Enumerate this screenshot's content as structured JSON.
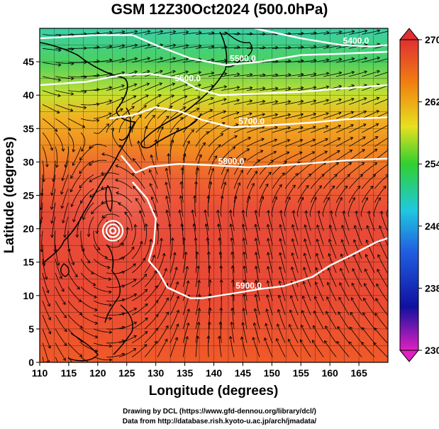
{
  "title": "GSM 12Z30Oct2024 (500.0hPa)",
  "credits": {
    "line1": "Drawing by DCL (https://www.gfd-dennou.org/library/dcl/)",
    "line2": "Data from http://database.rish.kyoto-u.ac.jp/arch/jmadata/"
  },
  "chart_data": {
    "type": "heatmap",
    "title": "GSM 12Z30Oct2024 (500.0hPa)",
    "xlabel": "Longitude (degrees)",
    "ylabel": "Latitude  (degrees)",
    "xlim": [
      110,
      170
    ],
    "ylim": [
      0,
      50
    ],
    "x_ticks": [
      110,
      115,
      120,
      125,
      130,
      135,
      140,
      145,
      150,
      155,
      160,
      165
    ],
    "y_ticks": [
      0,
      5,
      10,
      15,
      20,
      25,
      30,
      35,
      40,
      45
    ],
    "colorbar": {
      "min": 230,
      "max": 270,
      "ticks": [
        230,
        238,
        246,
        254,
        262,
        270
      ],
      "colors": [
        "#e020c0",
        "#1010a0",
        "#2060e0",
        "#20c8e0",
        "#30d030",
        "#e8e020",
        "#f08010",
        "#e03030"
      ]
    },
    "field": "temperature shading (K) with wind streamlines and geopotential height contours",
    "contours": [
      {
        "label": "5400.0",
        "points": [
          [
            147,
            50
          ],
          [
            155,
            48.5
          ],
          [
            162,
            47.5
          ],
          [
            167,
            47.3
          ],
          [
            170,
            47.5
          ]
        ]
      },
      {
        "label": "5500.0",
        "points": [
          [
            110,
            48.5
          ],
          [
            120,
            49
          ],
          [
            126,
            49
          ],
          [
            130,
            47.5
          ],
          [
            136,
            45.5
          ],
          [
            142,
            44.5
          ],
          [
            148,
            45
          ],
          [
            155,
            46
          ],
          [
            162,
            46.2
          ],
          [
            170,
            46.5
          ]
        ]
      },
      {
        "label": "5600.0",
        "points": [
          [
            110,
            41.5
          ],
          [
            118,
            42
          ],
          [
            124,
            43
          ],
          [
            129,
            43.2
          ],
          [
            134,
            42.5
          ],
          [
            137,
            41
          ],
          [
            141,
            40
          ],
          [
            147,
            40.2
          ],
          [
            155,
            40.5
          ],
          [
            162,
            41
          ],
          [
            170,
            41.5
          ]
        ]
      },
      {
        "label": "5700.0",
        "points": [
          [
            122,
            36.5
          ],
          [
            126,
            37
          ],
          [
            130,
            38.2
          ],
          [
            134,
            37.6
          ],
          [
            138,
            36.3
          ],
          [
            143,
            35.2
          ],
          [
            150,
            35.5
          ],
          [
            157,
            35.9
          ],
          [
            163,
            36.4
          ],
          [
            170,
            36.7
          ]
        ]
      },
      {
        "label": "5800.0",
        "points": [
          [
            124,
            31
          ],
          [
            126.5,
            28.4
          ],
          [
            129,
            29.3
          ],
          [
            134,
            29.7
          ],
          [
            140,
            29.5
          ],
          [
            146,
            29.2
          ],
          [
            152,
            29.5
          ],
          [
            158,
            29.9
          ],
          [
            164,
            30.3
          ],
          [
            170,
            30.5
          ]
        ]
      },
      {
        "label": "5900.0",
        "points": [
          [
            126,
            27
          ],
          [
            128.5,
            24.5
          ],
          [
            130,
            21.5
          ],
          [
            129.7,
            18
          ],
          [
            128.8,
            15.2
          ],
          [
            130.5,
            13.5
          ],
          [
            132,
            11.2
          ],
          [
            136,
            9.6
          ],
          [
            138,
            9.6
          ],
          [
            144,
            10.4
          ],
          [
            148,
            11
          ],
          [
            152,
            11.4
          ],
          [
            157,
            12.8
          ],
          [
            160,
            14.5
          ],
          [
            164,
            16.2
          ],
          [
            168,
            18
          ],
          [
            170,
            18.6
          ]
        ]
      }
    ],
    "vortex_center": {
      "lon": 122.6,
      "lat": 19.7
    }
  }
}
